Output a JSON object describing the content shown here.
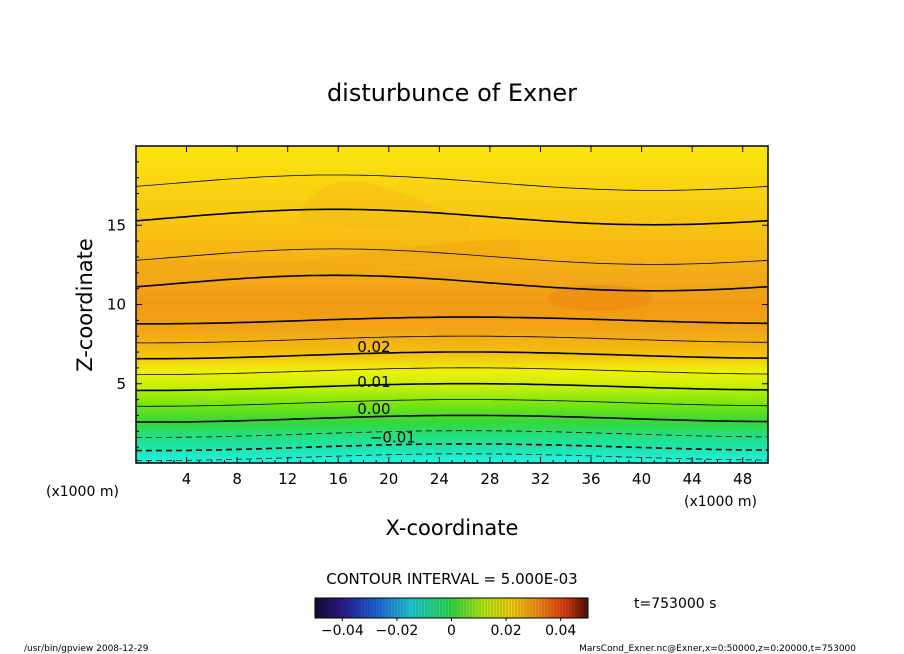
{
  "chart_data": {
    "type": "heatmap",
    "title": "disturbunce of Exner",
    "xlabel": "X-coordinate",
    "ylabel": "Z-coordinate",
    "x_unit_left": "(x1000 m)",
    "x_unit_right": "(x1000 m)",
    "xlim": [
      0,
      50
    ],
    "ylim": [
      0,
      20
    ],
    "x_ticks": [
      4,
      8,
      12,
      16,
      20,
      24,
      28,
      32,
      36,
      40,
      44,
      48
    ],
    "y_ticks": [
      5,
      10,
      15
    ],
    "contour_interval_text": "CONTOUR INTERVAL = 5.000E-03",
    "time_text": "t=753000 s",
    "colorbar": {
      "range": [
        -0.05,
        0.05
      ],
      "tick_values": [
        -0.04,
        -0.02,
        0,
        0.02,
        0.04
      ],
      "tick_labels": [
        "−0.04",
        "−0.02",
        "0",
        "0.02",
        "0.04"
      ]
    },
    "contour_labels": [
      {
        "value": 0.02,
        "text": "0.02",
        "x": 17.5,
        "z": 7.0
      },
      {
        "value": 0.01,
        "text": "0.01",
        "x": 17.5,
        "z": 4.8
      },
      {
        "value": 0.0,
        "text": "0.00",
        "x": 17.5,
        "z": 3.1
      },
      {
        "value": -0.01,
        "text": "−0.01",
        "x": 18.5,
        "z": 1.3
      }
    ],
    "profile": {
      "z": [
        0,
        1,
        2,
        3,
        4,
        5,
        6,
        7,
        8,
        9,
        10,
        11,
        12,
        13,
        14,
        15,
        16,
        17,
        18,
        19,
        20
      ],
      "exner_disturbance": [
        -0.018,
        -0.01,
        -0.004,
        0.001,
        0.006,
        0.011,
        0.016,
        0.021,
        0.026,
        0.03,
        0.032,
        0.031,
        0.028,
        0.025,
        0.023,
        0.021,
        0.019,
        0.017,
        0.014,
        0.012,
        0.011
      ]
    }
  },
  "footer": {
    "left": "/usr/bin/gpview   2008-12-29",
    "right": "MarsCond_Exner.nc@Exner,x=0:50000,z=0:20000,t=753000"
  }
}
